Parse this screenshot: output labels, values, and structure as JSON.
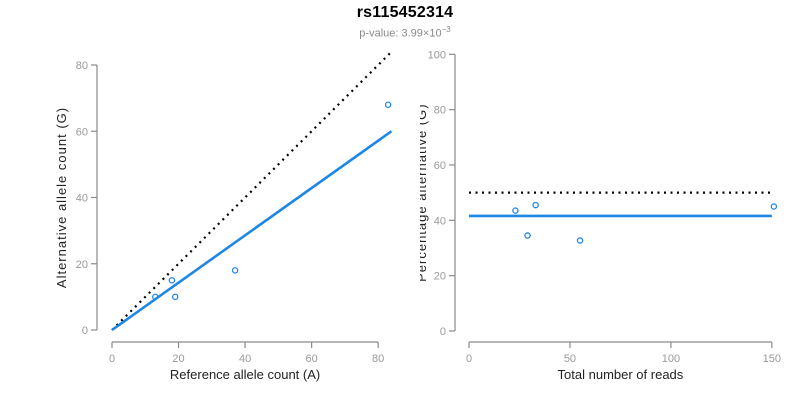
{
  "header": {
    "title": "rs115452314",
    "subtitle_prefix": "p-value: 3.99×10",
    "subtitle_exponent": "−3"
  },
  "colors": {
    "accent_blue": "#1E87E5",
    "identity_black": "#000000",
    "axis_gray": "#8a8a8a",
    "tick_label_gray": "#999999",
    "axis_title_dark": "#222222",
    "subtitle_gray": "#8a8a8a"
  },
  "chart_data": [
    {
      "type": "scatter",
      "name": "allele-counts-plot",
      "xlabel": "Reference allele count (A)",
      "ylabel": "Alternative allele count (G)",
      "xlim": [
        0,
        85
      ],
      "ylim": [
        0,
        85
      ],
      "xticks": [
        0,
        20,
        40,
        60,
        80
      ],
      "yticks": [
        0,
        20,
        40,
        60,
        80
      ],
      "grid": false,
      "legend": "none",
      "points": [
        {
          "x": 13,
          "y": 10
        },
        {
          "x": 18,
          "y": 15
        },
        {
          "x": 19,
          "y": 10
        },
        {
          "x": 37,
          "y": 18
        },
        {
          "x": 83,
          "y": 68
        }
      ],
      "lines": [
        {
          "name": "identity-line",
          "style": "dotted",
          "color": "#000000",
          "x1": 0,
          "y1": 0,
          "x2": 84,
          "y2": 84
        },
        {
          "name": "fitted-line",
          "style": "solid",
          "color": "#1E87E5",
          "x1": 0,
          "y1": 0,
          "x2": 84,
          "y2": 60
        }
      ]
    },
    {
      "type": "scatter",
      "name": "percentage-alternative-plot",
      "xlabel": "Total number of reads",
      "ylabel": "Percentage alternative (G)",
      "xlim": [
        0,
        155
      ],
      "ylim": [
        0,
        100
      ],
      "xticks": [
        0,
        50,
        100,
        150
      ],
      "yticks": [
        0,
        20,
        40,
        60,
        80,
        100
      ],
      "grid": false,
      "legend": "none",
      "points": [
        {
          "x": 23,
          "y": 43.5
        },
        {
          "x": 29,
          "y": 34.5
        },
        {
          "x": 33,
          "y": 45.5
        },
        {
          "x": 55,
          "y": 32.7
        },
        {
          "x": 151,
          "y": 45.0
        }
      ],
      "lines": [
        {
          "name": "expected-50pct-line",
          "style": "dotted",
          "color": "#000000",
          "x1": 0,
          "y1": 50,
          "x2": 150,
          "y2": 50
        },
        {
          "name": "mean-percentage-line",
          "style": "solid",
          "color": "#1E87E5",
          "x1": 0,
          "y1": 41.6,
          "x2": 150,
          "y2": 41.6
        }
      ]
    }
  ]
}
